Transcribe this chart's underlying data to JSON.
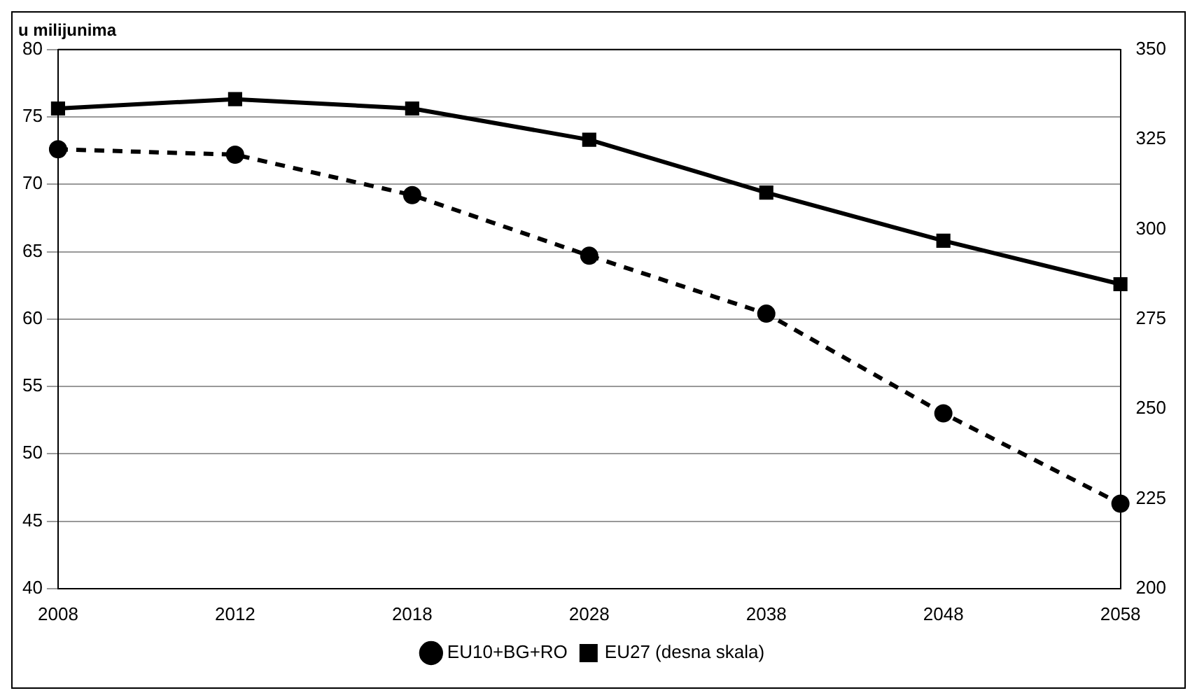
{
  "chart_data": {
    "type": "line",
    "ylabel": "u milijunima",
    "categories": [
      "2008",
      "2012",
      "2018",
      "2028",
      "2038",
      "2048",
      "2058"
    ],
    "series": [
      {
        "name": "EU10+BG+RO",
        "color": "#000000",
        "values": [
          72.6,
          72.2,
          69.2,
          64.7,
          60.4,
          53.0,
          46.3
        ],
        "marker": "circle",
        "line_style": "dashed"
      },
      {
        "name": "EU27 (desna skala)",
        "color": "#000000",
        "values": [
          333.6,
          336.2,
          333.6,
          324.9,
          310.2,
          296.8,
          284.7
        ],
        "marker": "square",
        "line_style": "solid",
        "axis": "y2"
      }
    ],
    "ylim": [
      40,
      80
    ],
    "yticks": [
      40,
      45,
      50,
      55,
      60,
      65,
      70,
      75,
      80
    ],
    "y2lim": [
      200,
      350
    ],
    "y2ticks": [
      200,
      225,
      250,
      275,
      300,
      325,
      350
    ],
    "grid": "y",
    "legend": "bottom"
  }
}
